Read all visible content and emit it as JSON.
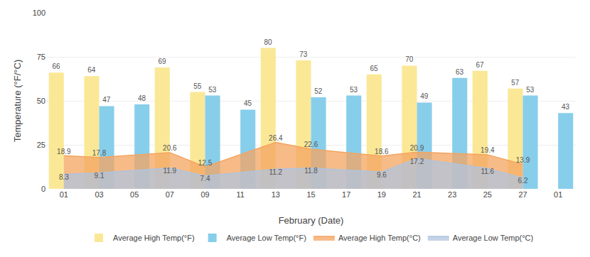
{
  "chart_data": {
    "type": "bar",
    "xlabel": "February (Date)",
    "ylabel": "Temperature (°F/°C)",
    "categories": [
      "01",
      "03",
      "05",
      "07",
      "09",
      "11",
      "13",
      "15",
      "17",
      "19",
      "21",
      "23",
      "25",
      "27",
      "01"
    ],
    "series": [
      {
        "name": "Average High Temp(°F)",
        "type": "bar",
        "color": "#FAE896",
        "values": [
          66,
          64,
          null,
          69,
          55,
          null,
          80,
          73,
          null,
          65,
          70,
          null,
          67,
          57,
          null
        ]
      },
      {
        "name": "Average Low Temp(°F)",
        "type": "bar",
        "color": "#87CEEB",
        "values": [
          null,
          47,
          48,
          null,
          53,
          45,
          null,
          52,
          53,
          null,
          49,
          63,
          null,
          53,
          43
        ]
      },
      {
        "name": "Average High Temp(°C)",
        "type": "area",
        "color": "#F4A460",
        "values": [
          18.9,
          17.8,
          null,
          20.6,
          12.5,
          null,
          26.4,
          22.6,
          null,
          18.6,
          20.9,
          null,
          19.4,
          13.9,
          null
        ]
      },
      {
        "name": "Average Low Temp(°C)",
        "type": "area",
        "color": "#B0C4DE",
        "values": [
          8.3,
          9.1,
          null,
          11.9,
          7.4,
          null,
          11.2,
          11.8,
          null,
          9.6,
          17.2,
          null,
          11.6,
          6.2,
          null
        ]
      }
    ],
    "ylim": [
      0,
      100
    ],
    "yticks": [
      0,
      25,
      50,
      75,
      100
    ],
    "grid": true,
    "legend": "bottom",
    "data_labels": true
  }
}
